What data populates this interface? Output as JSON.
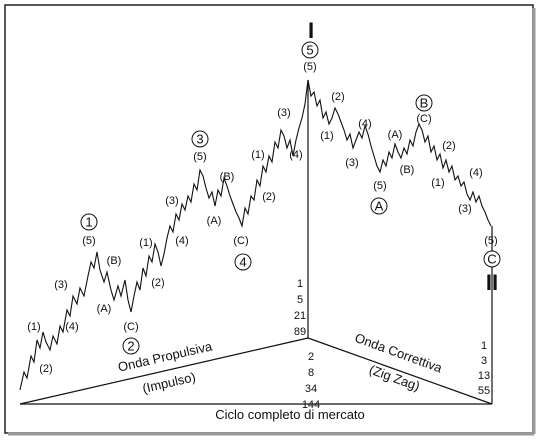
{
  "roman_top": "I",
  "roman_bottom": "II",
  "impulse_labels": [
    "(1)",
    "(2)",
    "(3)",
    "(4)",
    "(5)",
    "(1)",
    "(2)",
    "(3)",
    "(4)",
    "(5)",
    "(A)",
    "(B)",
    "(C)",
    "(1)",
    "(2)",
    "(3)",
    "(4)",
    "(5)",
    "(1)",
    "(2)",
    "(3)",
    "(4)",
    "(5)"
  ],
  "major_labels": {
    "one": "1",
    "two": "2",
    "three": "3",
    "four": "4",
    "five": "5",
    "a": "A",
    "b": "B",
    "c": "C"
  },
  "correction_labels": [
    "(1)",
    "(2)",
    "(3)",
    "(4)",
    "(5)",
    "(A)",
    "(B)",
    "(C)",
    "(1)",
    "(2)",
    "(3)",
    "(4)",
    "(5)"
  ],
  "center_numbers_top": [
    "1",
    "5",
    "21",
    "89"
  ],
  "center_numbers_bottom": [
    "2",
    "8",
    "34",
    "144"
  ],
  "right_numbers": [
    "1",
    "3",
    "13",
    "55"
  ],
  "texts": {
    "impulse_title": "Onda Propulsiva",
    "impulse_sub": "(Impulso)",
    "correction_title": "Onda Correttiva",
    "correction_sub": "(Zig Zag)",
    "cycle": "Ciclo completo di mercato"
  }
}
